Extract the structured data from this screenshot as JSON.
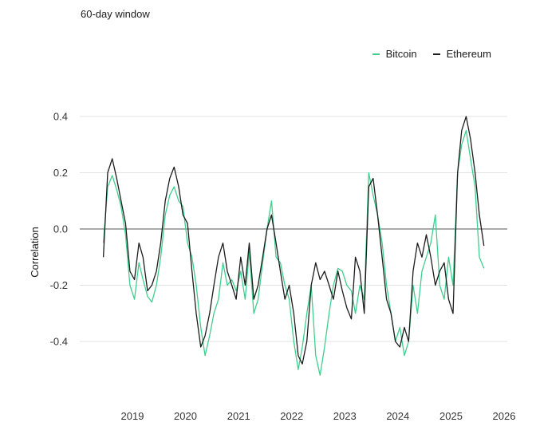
{
  "subtitle": "60-day window",
  "chart_data": {
    "type": "line",
    "title": "",
    "xlabel": "",
    "ylabel": "Correlation",
    "x_ticks": [
      "2019",
      "2020",
      "2021",
      "2022",
      "2023",
      "2024",
      "2025",
      "2026"
    ],
    "y_ticks": [
      "0.4",
      "0.2",
      "0.0",
      "-0.2",
      "-0.4"
    ],
    "xlim": [
      "2018-06-01",
      "2026-01-01"
    ],
    "ylim": [
      -0.55,
      0.4
    ],
    "grid": "horizontal",
    "zero_line": true,
    "legend_position": "top-right",
    "series": [
      {
        "name": "Bitcoin",
        "color": "#3ecf8e",
        "x": [
          "2018-06-15",
          "2018-07-15",
          "2018-08-15",
          "2018-09-15",
          "2018-10-15",
          "2018-11-15",
          "2018-12-15",
          "2019-01-15",
          "2019-02-15",
          "2019-03-15",
          "2019-04-15",
          "2019-05-15",
          "2019-06-15",
          "2019-07-15",
          "2019-08-15",
          "2019-09-15",
          "2019-10-15",
          "2019-11-15",
          "2019-12-15",
          "2020-01-15",
          "2020-02-15",
          "2020-03-15",
          "2020-04-15",
          "2020-05-15",
          "2020-06-15",
          "2020-07-15",
          "2020-08-15",
          "2020-09-15",
          "2020-10-15",
          "2020-11-15",
          "2020-12-15",
          "2021-01-15",
          "2021-02-15",
          "2021-03-15",
          "2021-04-15",
          "2021-05-15",
          "2021-06-15",
          "2021-07-15",
          "2021-08-15",
          "2021-09-15",
          "2021-10-15",
          "2021-11-15",
          "2021-12-15",
          "2022-01-15",
          "2022-02-15",
          "2022-03-15",
          "2022-04-15",
          "2022-05-15",
          "2022-06-15",
          "2022-07-15",
          "2022-08-15",
          "2022-09-15",
          "2022-10-15",
          "2022-11-15",
          "2022-12-15",
          "2023-01-15",
          "2023-02-15",
          "2023-03-15",
          "2023-04-15",
          "2023-05-15",
          "2023-06-15",
          "2023-07-15",
          "2023-08-15",
          "2023-09-15",
          "2023-10-15",
          "2023-11-15",
          "2023-12-15",
          "2024-01-15",
          "2024-02-15",
          "2024-03-15",
          "2024-04-15",
          "2024-05-15",
          "2024-06-15",
          "2024-07-15",
          "2024-08-15",
          "2024-09-15",
          "2024-10-15",
          "2024-11-15",
          "2024-12-15",
          "2025-01-15",
          "2025-02-15",
          "2025-03-15",
          "2025-04-15",
          "2025-05-15",
          "2025-06-15",
          "2025-07-15",
          "2025-08-15"
        ],
        "y": [
          -0.05,
          0.15,
          0.19,
          0.14,
          0.08,
          -0.02,
          -0.2,
          -0.25,
          -0.12,
          -0.18,
          -0.24,
          -0.26,
          -0.2,
          -0.1,
          0.05,
          0.12,
          0.15,
          0.1,
          0.08,
          -0.05,
          -0.1,
          -0.2,
          -0.35,
          -0.45,
          -0.38,
          -0.3,
          -0.25,
          -0.12,
          -0.2,
          -0.18,
          -0.22,
          -0.15,
          -0.25,
          -0.08,
          -0.3,
          -0.25,
          -0.12,
          0.0,
          0.1,
          -0.1,
          -0.12,
          -0.2,
          -0.25,
          -0.4,
          -0.5,
          -0.42,
          -0.3,
          -0.2,
          -0.45,
          -0.52,
          -0.42,
          -0.3,
          -0.2,
          -0.14,
          -0.15,
          -0.2,
          -0.22,
          -0.3,
          -0.2,
          -0.25,
          0.2,
          0.12,
          0.05,
          -0.05,
          -0.2,
          -0.3,
          -0.4,
          -0.35,
          -0.45,
          -0.4,
          -0.2,
          -0.3,
          -0.15,
          -0.1,
          -0.05,
          0.05,
          -0.2,
          -0.25,
          -0.1,
          -0.2,
          0.2,
          0.3,
          0.35,
          0.25,
          0.15,
          -0.1,
          -0.14
        ]
      },
      {
        "name": "Ethereum",
        "color": "#1c1c1c",
        "x": [
          "2018-06-15",
          "2018-07-15",
          "2018-08-15",
          "2018-09-15",
          "2018-10-15",
          "2018-11-15",
          "2018-12-15",
          "2019-01-15",
          "2019-02-15",
          "2019-03-15",
          "2019-04-15",
          "2019-05-15",
          "2019-06-15",
          "2019-07-15",
          "2019-08-15",
          "2019-09-15",
          "2019-10-15",
          "2019-11-15",
          "2019-12-15",
          "2020-01-15",
          "2020-02-15",
          "2020-03-15",
          "2020-04-15",
          "2020-05-15",
          "2020-06-15",
          "2020-07-15",
          "2020-08-15",
          "2020-09-15",
          "2020-10-15",
          "2020-11-15",
          "2020-12-15",
          "2021-01-15",
          "2021-02-15",
          "2021-03-15",
          "2021-04-15",
          "2021-05-15",
          "2021-06-15",
          "2021-07-15",
          "2021-08-15",
          "2021-09-15",
          "2021-10-15",
          "2021-11-15",
          "2021-12-15",
          "2022-01-15",
          "2022-02-15",
          "2022-03-15",
          "2022-04-15",
          "2022-05-15",
          "2022-06-15",
          "2022-07-15",
          "2022-08-15",
          "2022-09-15",
          "2022-10-15",
          "2022-11-15",
          "2022-12-15",
          "2023-01-15",
          "2023-02-15",
          "2023-03-15",
          "2023-04-15",
          "2023-05-15",
          "2023-06-15",
          "2023-07-15",
          "2023-08-15",
          "2023-09-15",
          "2023-10-15",
          "2023-11-15",
          "2023-12-15",
          "2024-01-15",
          "2024-02-15",
          "2024-03-15",
          "2024-04-15",
          "2024-05-15",
          "2024-06-15",
          "2024-07-15",
          "2024-08-15",
          "2024-09-15",
          "2024-10-15",
          "2024-11-15",
          "2024-12-15",
          "2025-01-15",
          "2025-02-15",
          "2025-03-15",
          "2025-04-15",
          "2025-05-15",
          "2025-06-15",
          "2025-07-15",
          "2025-08-15"
        ],
        "y": [
          -0.1,
          0.2,
          0.25,
          0.18,
          0.1,
          0.02,
          -0.15,
          -0.18,
          -0.05,
          -0.1,
          -0.22,
          -0.2,
          -0.15,
          -0.05,
          0.1,
          0.18,
          0.22,
          0.15,
          0.05,
          0.02,
          -0.15,
          -0.3,
          -0.42,
          -0.38,
          -0.3,
          -0.2,
          -0.1,
          -0.05,
          -0.15,
          -0.2,
          -0.25,
          -0.1,
          -0.2,
          -0.05,
          -0.25,
          -0.2,
          -0.1,
          0.0,
          0.05,
          -0.05,
          -0.15,
          -0.25,
          -0.2,
          -0.3,
          -0.45,
          -0.48,
          -0.4,
          -0.2,
          -0.12,
          -0.18,
          -0.15,
          -0.2,
          -0.25,
          -0.15,
          -0.22,
          -0.28,
          -0.32,
          -0.1,
          -0.15,
          -0.3,
          0.15,
          0.18,
          0.05,
          -0.1,
          -0.25,
          -0.3,
          -0.4,
          -0.42,
          -0.35,
          -0.4,
          -0.15,
          -0.05,
          -0.1,
          -0.02,
          -0.1,
          -0.2,
          -0.15,
          -0.12,
          -0.25,
          -0.3,
          0.2,
          0.35,
          0.4,
          0.32,
          0.2,
          0.05,
          -0.06
        ]
      }
    ]
  }
}
